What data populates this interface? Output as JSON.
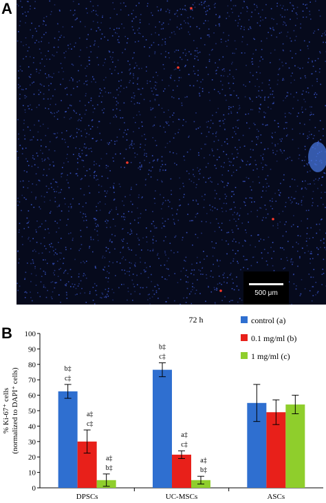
{
  "panels": {
    "a_label": "A",
    "b_label": "B"
  },
  "micrograph": {
    "scale_bar_label": "500 μm",
    "background_color": "#060a1c",
    "nuclei_color": "#3a55c8",
    "ki67_color": "#ff3a2a"
  },
  "chart_data": {
    "type": "bar",
    "title": "72 h",
    "ylabel_line1": "% Ki-67⁺ cells",
    "ylabel_line2": "(normalized to DAPI⁺ cells)",
    "xlabel": "",
    "ylim": [
      0,
      100
    ],
    "yticks": [
      0,
      10,
      20,
      30,
      40,
      50,
      60,
      70,
      80,
      90,
      100
    ],
    "grid": false,
    "legend_position": "top-right",
    "categories": [
      "DPSCs",
      "UC-MSCs",
      "ASCs"
    ],
    "series": [
      {
        "name": "control (a)",
        "color": "#2f6fd0",
        "values": [
          62.5,
          76.5,
          55
        ],
        "errors": [
          4.5,
          4.5,
          12
        ]
      },
      {
        "name": "0.1 mg/ml (b)",
        "color": "#e8201a",
        "values": [
          30,
          21.5,
          49
        ],
        "errors": [
          7.5,
          2.5,
          8
        ]
      },
      {
        "name": "1 mg/ml (c)",
        "color": "#8fce2c",
        "values": [
          5,
          5,
          54
        ],
        "errors": [
          4,
          2.5,
          6
        ]
      }
    ],
    "annotations": [
      {
        "category": 0,
        "series": 0,
        "lines": [
          "b‡",
          "c‡"
        ]
      },
      {
        "category": 0,
        "series": 1,
        "lines": [
          "a‡",
          "c‡"
        ]
      },
      {
        "category": 0,
        "series": 2,
        "lines": [
          "a‡",
          "b‡"
        ]
      },
      {
        "category": 1,
        "series": 0,
        "lines": [
          "b‡",
          "c‡"
        ]
      },
      {
        "category": 1,
        "series": 1,
        "lines": [
          "a‡",
          "c‡"
        ]
      },
      {
        "category": 1,
        "series": 2,
        "lines": [
          "a‡",
          "b‡"
        ]
      }
    ]
  }
}
